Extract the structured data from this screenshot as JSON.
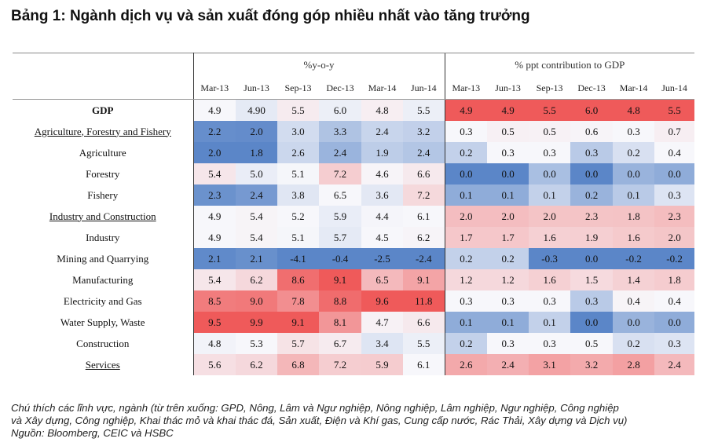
{
  "title": "Bảng 1: Ngành dịch vụ và sản xuất đóng góp nhiều nhất vào tăng trưởng",
  "caption": {
    "line1": "Chú thích các lĩnh vực, ngành (từ trên xuống: GPD, Nông, Lâm và Ngư nghiệp, Nông nghiệp, Lâm nghiệp, Ngư nghiệp, Công nghiệp",
    "line2": "và Xây dựng, Công nghiệp, Khai thác mỏ và khai thác đá, Sản xuất, Điện và Khí gas, Cung cấp nước, Rác Thải, Xây dựng và Dịch vụ)",
    "line3": "Nguồn: Bloomberg, CEIC và HSBC"
  },
  "chart_data": {
    "type": "heatmap",
    "groups": [
      "%y-o-y",
      "% ppt contribution to GDP"
    ],
    "columns": [
      "Mar-13",
      "Jun-13",
      "Sep-13",
      "Dec-13",
      "Mar-14",
      "Jun-14"
    ],
    "rows": [
      {
        "label": "GDP",
        "style": "bold",
        "yoy": [
          "4.9",
          "4.90",
          "5.5",
          "6.0",
          "4.8",
          "5.5"
        ],
        "ppt": [
          "4.9",
          "4.9",
          "5.5",
          "6.0",
          "4.8",
          "5.5"
        ]
      },
      {
        "label": "Agriculture, Forestry and Fishery",
        "style": "underline",
        "yoy": [
          "2.2",
          "2.0",
          "3.0",
          "3.3",
          "2.4",
          "3.2"
        ],
        "ppt": [
          "0.3",
          "0.5",
          "0.5",
          "0.6",
          "0.3",
          "0.7"
        ]
      },
      {
        "label": "Agriculture",
        "style": "",
        "yoy": [
          "2.0",
          "1.8",
          "2.6",
          "2.4",
          "1.9",
          "2.4"
        ],
        "ppt": [
          "0.2",
          "0.3",
          "0.3",
          "0.3",
          "0.2",
          "0.4"
        ]
      },
      {
        "label": "Forestry",
        "style": "",
        "yoy": [
          "5.4",
          "5.0",
          "5.1",
          "7.2",
          "4.6",
          "6.6"
        ],
        "ppt": [
          "0.0",
          "0.0",
          "0.0",
          "0.0",
          "0.0",
          "0.0"
        ]
      },
      {
        "label": "Fishery",
        "style": "",
        "yoy": [
          "2.3",
          "2.4",
          "3.8",
          "6.5",
          "3.6",
          "7.2"
        ],
        "ppt": [
          "0.1",
          "0.1",
          "0.1",
          "0.2",
          "0.1",
          "0.3"
        ]
      },
      {
        "label": "Industry and Construction",
        "style": "underline",
        "yoy": [
          "4.9",
          "5.4",
          "5.2",
          "5.9",
          "4.4",
          "6.1"
        ],
        "ppt": [
          "2.0",
          "2.0",
          "2.0",
          "2.3",
          "1.8",
          "2.3"
        ]
      },
      {
        "label": "Industry",
        "style": "",
        "yoy": [
          "4.9",
          "5.4",
          "5.1",
          "5.7",
          "4.5",
          "6.2"
        ],
        "ppt": [
          "1.7",
          "1.7",
          "1.6",
          "1.9",
          "1.6",
          "2.0"
        ]
      },
      {
        "label": "Mining and Quarrying",
        "style": "",
        "yoy": [
          "2.1",
          "2.1",
          "-4.1",
          "-0.4",
          "-2.5",
          "-2.4"
        ],
        "ppt": [
          "0.2",
          "0.2",
          "-0.3",
          "0.0",
          "-0.2",
          "-0.2"
        ]
      },
      {
        "label": "Manufacturing",
        "style": "",
        "yoy": [
          "5.4",
          "6.2",
          "8.6",
          "9.1",
          "6.5",
          "9.1"
        ],
        "ppt": [
          "1.2",
          "1.2",
          "1.6",
          "1.5",
          "1.4",
          "1.8"
        ]
      },
      {
        "label": "Electricity and Gas",
        "style": "",
        "yoy": [
          "8.5",
          "9.0",
          "7.8",
          "8.8",
          "9.6",
          "11.8"
        ],
        "ppt": [
          "0.3",
          "0.3",
          "0.3",
          "0.3",
          "0.4",
          "0.4"
        ]
      },
      {
        "label": "Water Supply, Waste",
        "style": "",
        "yoy": [
          "9.5",
          "9.9",
          "9.1",
          "8.1",
          "4.7",
          "6.6"
        ],
        "ppt": [
          "0.1",
          "0.1",
          "0.1",
          "0.0",
          "0.0",
          "0.0"
        ]
      },
      {
        "label": "Construction",
        "style": "",
        "yoy": [
          "4.8",
          "5.3",
          "5.7",
          "6.7",
          "3.4",
          "5.5"
        ],
        "ppt": [
          "0.2",
          "0.3",
          "0.3",
          "0.5",
          "0.2",
          "0.3"
        ]
      },
      {
        "label": "Services",
        "style": "underline",
        "yoy": [
          "5.6",
          "6.2",
          "6.8",
          "7.2",
          "5.9",
          "6.1"
        ],
        "ppt": [
          "2.6",
          "2.4",
          "3.1",
          "3.2",
          "2.8",
          "2.4"
        ]
      }
    ],
    "colors": {
      "low": "#5b86c8",
      "mid": "#f7f7fb",
      "high": "#ef5a5a"
    }
  }
}
